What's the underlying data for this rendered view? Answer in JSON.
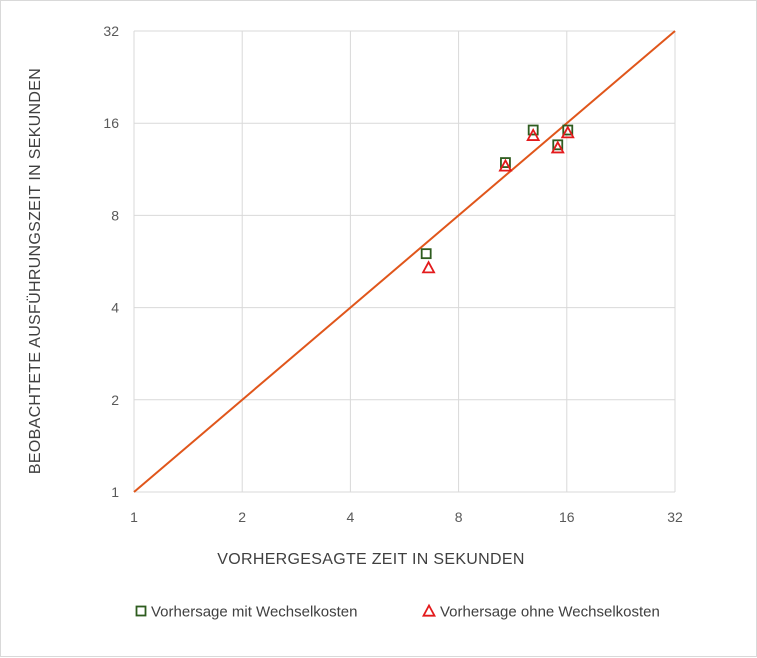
{
  "chart_data": {
    "type": "scatter",
    "title": "",
    "xlabel": "VORHERGESAGTE  ZEIT IN SEKUNDEN",
    "ylabel": "BEOBACHTETE  AUSFÜHRUNGSZEIT  IN SEKUNDEN",
    "xscale": "log2",
    "yscale": "log2",
    "xlim": [
      1,
      32
    ],
    "ylim": [
      1,
      32
    ],
    "xticks": [
      "1",
      "2",
      "4",
      "8",
      "16",
      "32"
    ],
    "yticks": [
      "1",
      "2",
      "4",
      "8",
      "16",
      "32"
    ],
    "grid": true,
    "legend_position": "bottom",
    "reference_line": {
      "from": [
        1,
        1
      ],
      "to": [
        32,
        32
      ],
      "color": "#e0561b"
    },
    "series": [
      {
        "name": "Vorhersage mit Wechselkosten",
        "marker": "square",
        "color": "#2e5c1f",
        "points": [
          [
            6.5,
            6.0
          ],
          [
            10.8,
            11.9
          ],
          [
            12.9,
            15.2
          ],
          [
            15.1,
            13.6
          ],
          [
            16.1,
            15.2
          ]
        ]
      },
      {
        "name": "Vorhersage ohne Wechselkosten",
        "marker": "triangle",
        "color": "#e31a1c",
        "points": [
          [
            6.6,
            5.4
          ],
          [
            10.8,
            11.6
          ],
          [
            12.9,
            14.6
          ],
          [
            15.1,
            13.3
          ],
          [
            16.1,
            14.9
          ]
        ]
      }
    ]
  }
}
